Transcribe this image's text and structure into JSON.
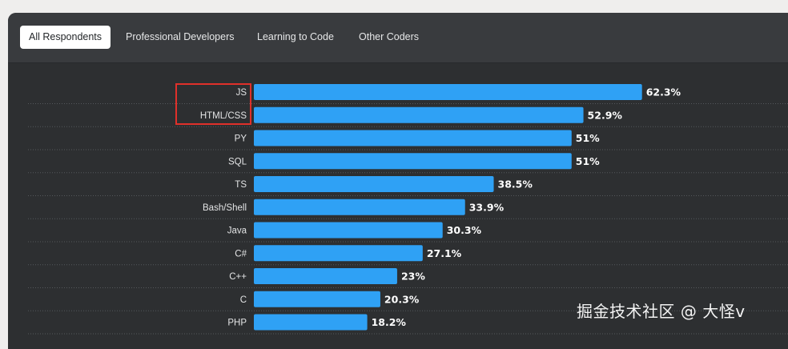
{
  "tabs": [
    {
      "label": "All Respondents",
      "active": true
    },
    {
      "label": "Professional Developers",
      "active": false
    },
    {
      "label": "Learning to Code",
      "active": false
    },
    {
      "label": "Other Coders",
      "active": false
    }
  ],
  "colors": {
    "bar": "#2fa1f5",
    "panel_bg": "#2d2f31",
    "highlight_box": "#e0302a"
  },
  "chart_data": {
    "type": "bar",
    "orientation": "horizontal",
    "categories": [
      "JS",
      "HTML/CSS",
      "PY",
      "SQL",
      "TS",
      "Bash/Shell",
      "Java",
      "C#",
      "C++",
      "C",
      "PHP"
    ],
    "values": [
      62.3,
      52.9,
      51,
      51,
      38.5,
      33.9,
      30.3,
      27.1,
      23,
      20.3,
      18.2
    ],
    "value_labels": [
      "62.3%",
      "52.9%",
      "51%",
      "51%",
      "38.5%",
      "33.9%",
      "30.3%",
      "27.1%",
      "23%",
      "20.3%",
      "18.2%"
    ],
    "unit": "%",
    "xlim": [
      0,
      100
    ],
    "grid": "dotted row separators",
    "highlighted_categories": [
      "JS",
      "HTML/CSS"
    ]
  },
  "watermark": "掘金技术社区 @ 大怪v"
}
